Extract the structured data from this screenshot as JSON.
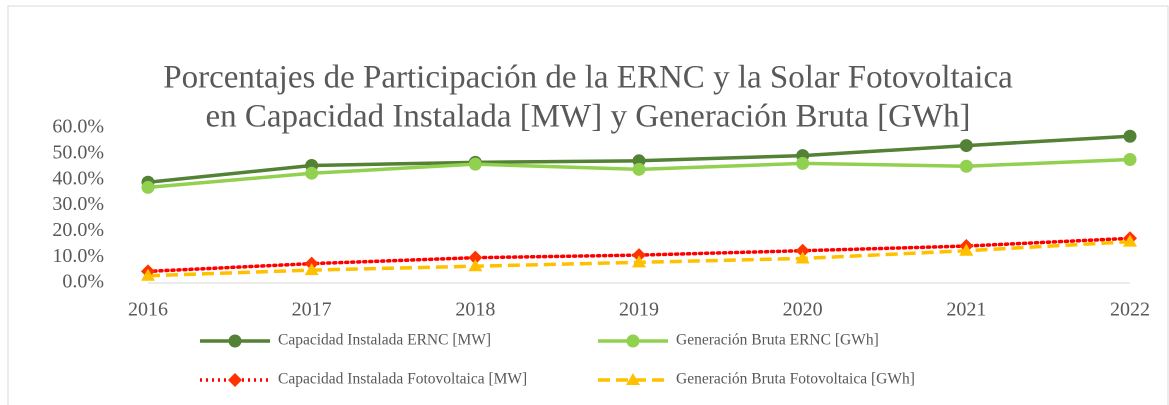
{
  "chart_data": {
    "type": "line",
    "title": [
      "Porcentajes de Participación de la ERNC y la Solar Fotovoltaica",
      "en Capacidad Instalada [MW] y Generación Bruta [GWh]"
    ],
    "categories": [
      "2016",
      "2017",
      "2018",
      "2019",
      "2020",
      "2021",
      "2022"
    ],
    "series": [
      {
        "name": "Capacidad Instalada ERNC [MW]",
        "color": "#538135",
        "style": "solid",
        "marker": "circle",
        "values": [
          39,
          45.5,
          46.7,
          47.3,
          49.3,
          53.2,
          56.8
        ]
      },
      {
        "name": "Generación Bruta ERNC [GWh]",
        "color": "#92d050",
        "style": "solid",
        "marker": "circle",
        "values": [
          37,
          42.5,
          46,
          44,
          46.3,
          45.2,
          47.8
        ]
      },
      {
        "name": "Capacidad Instalada Fotovoltaica [MW]",
        "color": "#ff0000",
        "style": "dotted",
        "marker": "diamond",
        "values": [
          4.5,
          7.5,
          9.8,
          10.8,
          12.5,
          14.3,
          17.3
        ]
      },
      {
        "name": "Generación Bruta Fotovoltaica [GWh]",
        "color": "#ffc000",
        "style": "dashed",
        "marker": "triangle",
        "values": [
          2.8,
          5,
          6.5,
          8,
          9.5,
          12.5,
          16
        ]
      }
    ],
    "ylim": [
      0,
      60
    ],
    "yticks": [
      {
        "value": 0,
        "label": "0.0%"
      },
      {
        "value": 10,
        "label": "10.0%"
      },
      {
        "value": 20,
        "label": "20.0%"
      },
      {
        "value": 30,
        "label": "30.0%"
      },
      {
        "value": 40,
        "label": "40.0%"
      },
      {
        "value": 50,
        "label": "50.0%"
      },
      {
        "value": 60,
        "label": "60.0%"
      }
    ],
    "grid": false,
    "legend": "bottom"
  }
}
